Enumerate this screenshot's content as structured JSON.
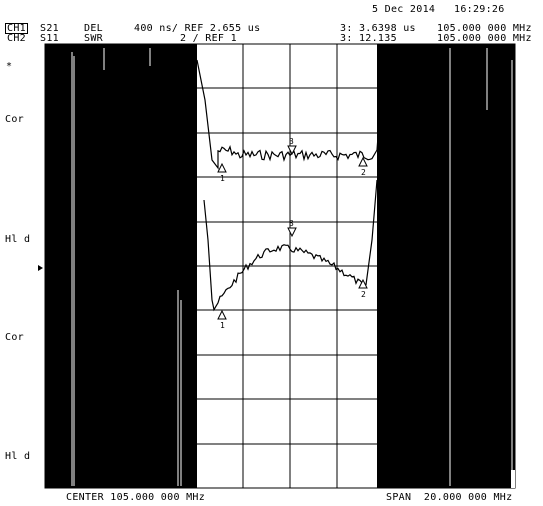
{
  "header": {
    "date": "5 Dec 2014",
    "time": "16:29:26",
    "ch1": {
      "label": "CH1",
      "param": "S21",
      "format": "DEL",
      "scale": "400 ns/ REF 2.655 us",
      "marker": "3: 3.6398 us",
      "freq": "105.000 000 MHz"
    },
    "ch2": {
      "label": "CH2",
      "param": "S11",
      "format": "SWR",
      "scale": "2 / REF 1",
      "marker": "3: 12.135",
      "freq": "105.000 000 MHz"
    }
  },
  "side_labels": {
    "star": "*",
    "cor_1": "Cor",
    "hld_1": "Hl d",
    "cor_2": "Cor",
    "hld_2": "Hl d"
  },
  "footer": {
    "center": "CENTER 105.000 000 MHz",
    "span": "SPAN  20.000 000 MHz"
  },
  "markers": {
    "m1": "1",
    "m2": "2",
    "m3": "3"
  },
  "colors": {
    "background": "#ffffff",
    "trace": "#000000",
    "grid": "#000000"
  }
}
